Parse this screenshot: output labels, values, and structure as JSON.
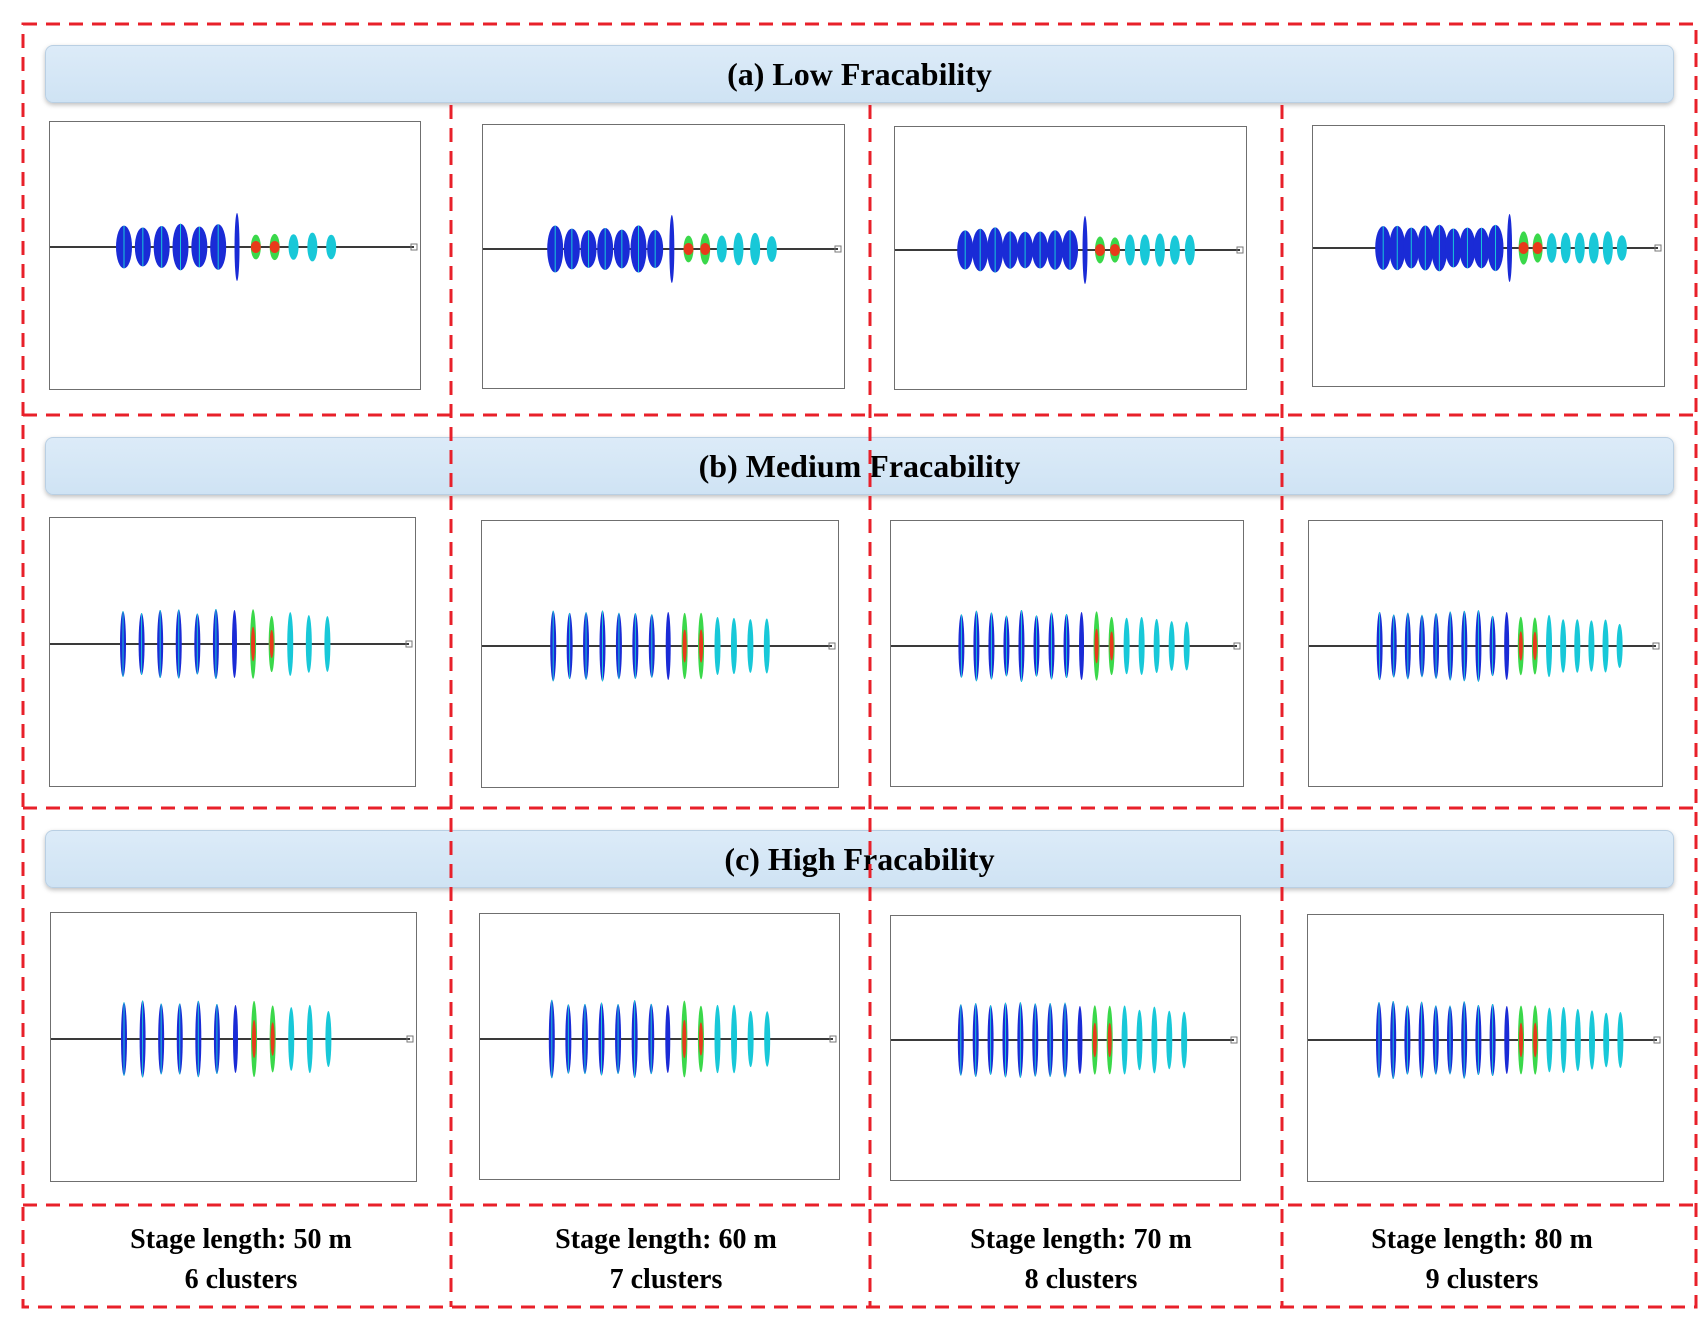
{
  "rows": [
    {
      "title": "(a) Low Fracability",
      "clusters": [
        6,
        7,
        8,
        9
      ]
    },
    {
      "title": "(b) Medium Fracability",
      "clusters": [
        6,
        7,
        8,
        9
      ]
    },
    {
      "title": "(c) High Fracability",
      "clusters": [
        6,
        7,
        8,
        9
      ]
    }
  ],
  "columns": [
    {
      "stage_length": "Stage length: 50 m",
      "clusters_label": "6 clusters"
    },
    {
      "stage_length": "Stage length: 60 m",
      "clusters_label": "7 clusters"
    },
    {
      "stage_length": "Stage length: 70 m",
      "clusters_label": "8 clusters"
    },
    {
      "stage_length": "Stage length: 80 m",
      "clusters_label": "9 clusters"
    }
  ],
  "colors": {
    "frame_dash": "#e8202a",
    "banner_fill": "#d6e8f7",
    "wellbore": "#3a3a3a",
    "fracture_low": "#1a2bd6",
    "fracture_mid": "#18c8d8",
    "fracture_green": "#3ad84a",
    "fracture_high": "#e83a1a"
  }
}
